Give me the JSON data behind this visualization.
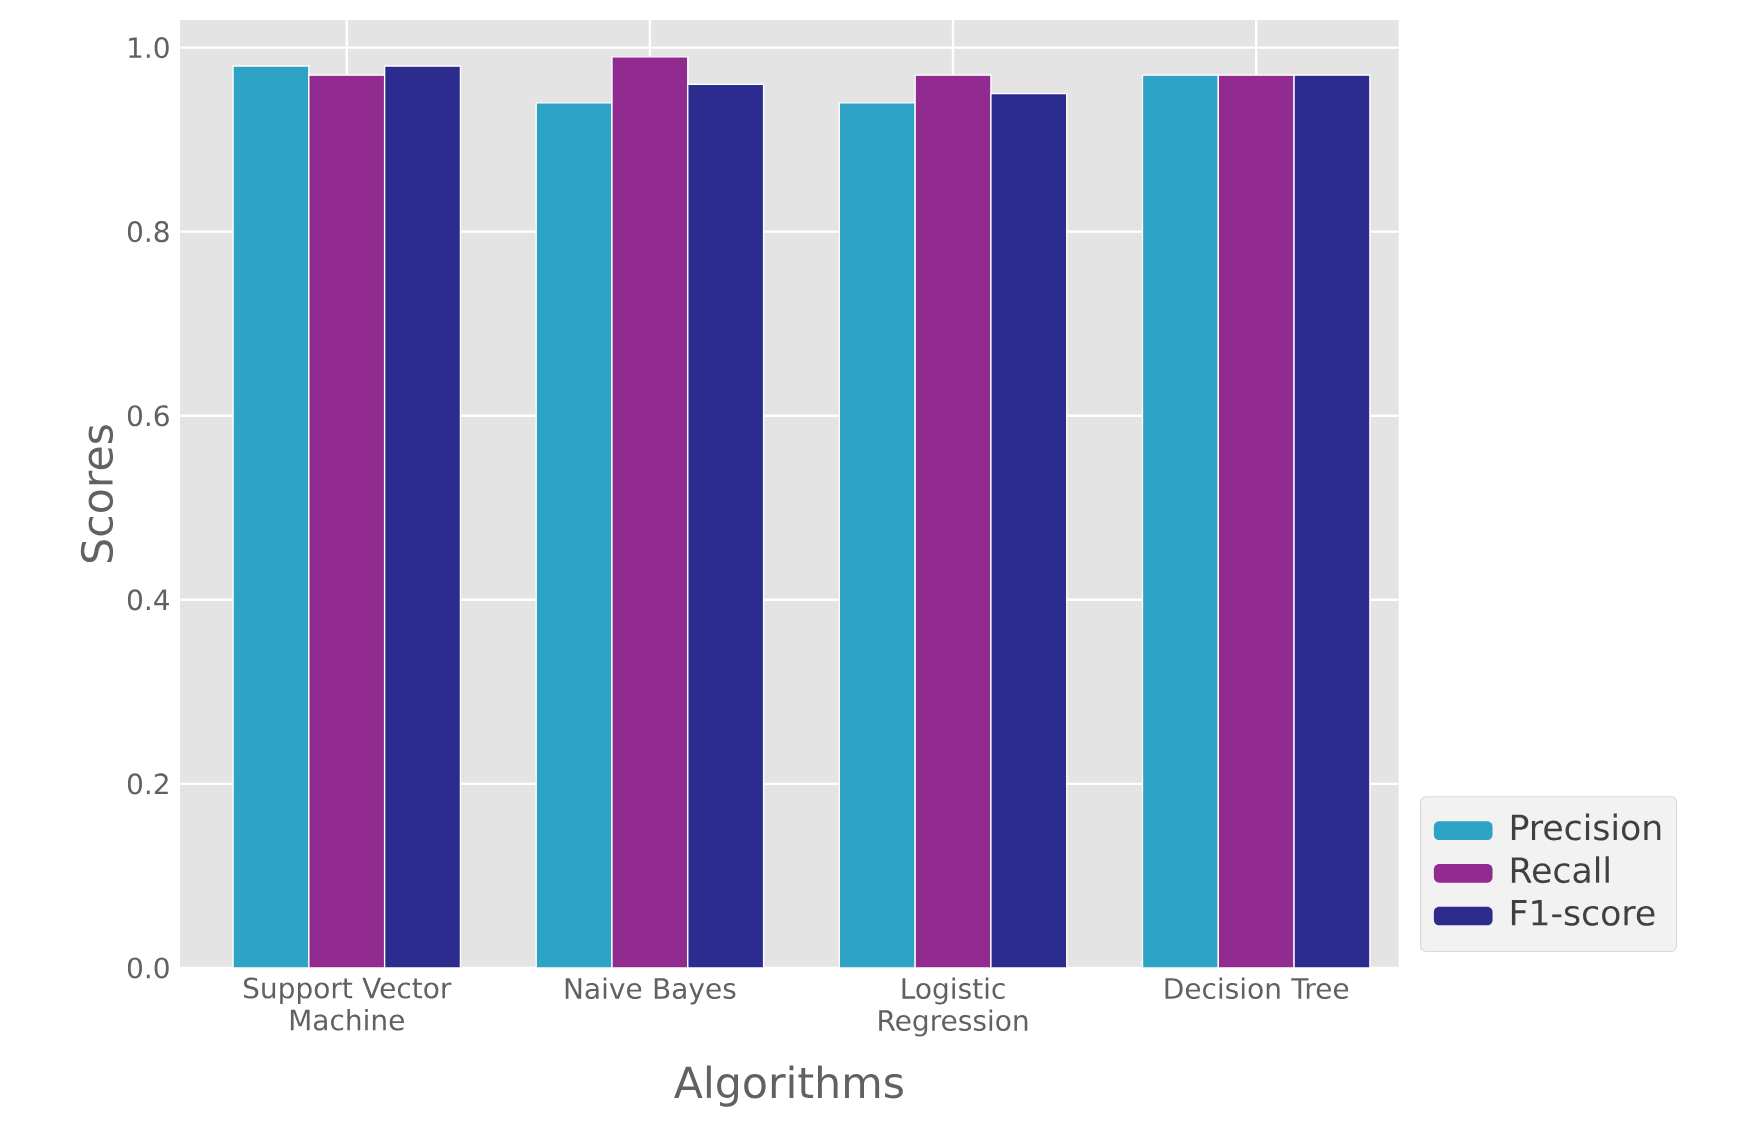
{
  "chart_data": {
    "type": "bar",
    "xlabel": "Algorithms",
    "ylabel": "Scores",
    "categories": [
      "Support Vector Machine",
      "Naive Bayes",
      "Logistic Regression",
      "Decision Tree"
    ],
    "series": [
      {
        "name": "Precision",
        "color": "#2ea3c6",
        "values": [
          0.98,
          0.94,
          0.94,
          0.97
        ]
      },
      {
        "name": "Recall",
        "color": "#922b8f",
        "values": [
          0.97,
          0.99,
          0.97,
          0.97
        ]
      },
      {
        "name": "F1-score",
        "color": "#2c2c8f",
        "values": [
          0.98,
          0.96,
          0.95,
          0.97
        ]
      }
    ],
    "ylim": [
      0,
      1.03
    ],
    "yticks": [
      {
        "value": 0,
        "label": "0.0"
      },
      {
        "value": 0.2,
        "label": "0.2"
      },
      {
        "value": 0.4,
        "label": "0.4"
      },
      {
        "value": 0.6,
        "label": "0.6"
      },
      {
        "value": 0.8,
        "label": "0.8"
      },
      {
        "value": 1.0,
        "label": "1.0"
      }
    ],
    "grid": true,
    "legend": "bottom right"
  }
}
